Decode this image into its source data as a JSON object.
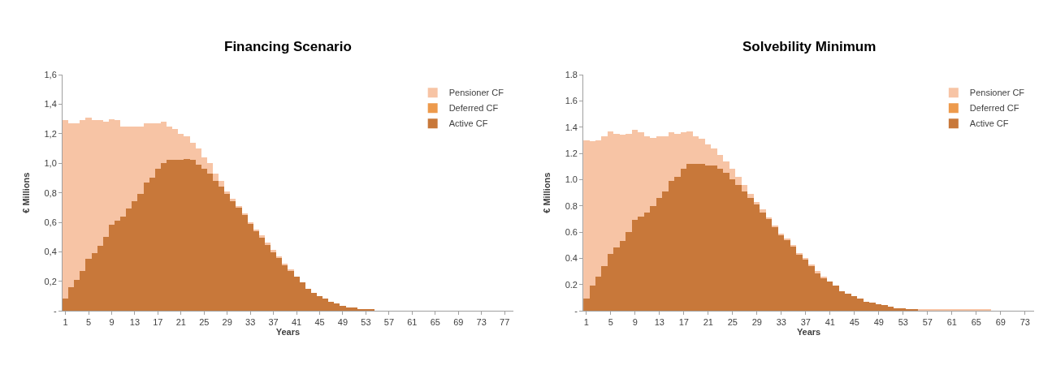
{
  "chart_data": [
    {
      "type": "bar",
      "title": "Financing Scenario",
      "xlabel": "Years",
      "ylabel": "€ Millions",
      "stacked": true,
      "grid": false,
      "legend": "top right",
      "categories": [
        "1",
        null,
        null,
        null,
        "5",
        null,
        null,
        null,
        "9",
        null,
        null,
        null,
        "13",
        null,
        null,
        null,
        "17",
        null,
        null,
        null,
        "21",
        null,
        null,
        null,
        "25",
        null,
        null,
        null,
        "29",
        null,
        null,
        null,
        "33",
        null,
        null,
        null,
        "37",
        null,
        null,
        null,
        "41",
        null,
        null,
        null,
        "45",
        null,
        null,
        null,
        "49",
        null,
        null,
        null,
        "53",
        null,
        null,
        null,
        "57",
        null,
        null,
        null,
        "61",
        null,
        null,
        null,
        "65",
        null,
        null,
        null,
        "69",
        null,
        null,
        null,
        "73",
        null,
        null,
        null,
        "77",
        null
      ],
      "ylim": [
        0,
        1.6
      ],
      "yticks": [
        {
          "value": 0,
          "label": "-"
        },
        {
          "value": 0.2,
          "label": "0,2"
        },
        {
          "value": 0.4,
          "label": "0,4"
        },
        {
          "value": 0.6,
          "label": "0,6"
        },
        {
          "value": 0.8,
          "label": "0,8"
        },
        {
          "value": 1.0,
          "label": "1,0"
        },
        {
          "value": 1.2,
          "label": "1,2"
        },
        {
          "value": 1.4,
          "label": "1,4"
        },
        {
          "value": 1.6,
          "label": "1,6"
        }
      ],
      "series": [
        {
          "name": "Active CF",
          "color": "#c8783a",
          "values": [
            0.08,
            0.16,
            0.21,
            0.27,
            0.35,
            0.39,
            0.44,
            0.5,
            0.58,
            0.61,
            0.64,
            0.69,
            0.74,
            0.79,
            0.87,
            0.9,
            0.96,
            1.0,
            1.02,
            1.02,
            1.02,
            1.03,
            1.02,
            0.99,
            0.96,
            0.93,
            0.88,
            0.84,
            0.79,
            0.74,
            0.7,
            0.65,
            0.59,
            0.54,
            0.5,
            0.45,
            0.4,
            0.36,
            0.31,
            0.27,
            0.23,
            0.19,
            0.15,
            0.12,
            0.1,
            0.08,
            0.06,
            0.05,
            0.03,
            0.02,
            0.02,
            0.01,
            0.01,
            0.01,
            0,
            0,
            0,
            0,
            0,
            0,
            0,
            0,
            0,
            0,
            0,
            0,
            0,
            0,
            0,
            0,
            0,
            0,
            0,
            0,
            0,
            0,
            0,
            0
          ]
        },
        {
          "name": "Deferred CF",
          "color": "#ed9a4c",
          "values": [
            0,
            0,
            0,
            0,
            0,
            0,
            0,
            0,
            0,
            0,
            0,
            0,
            0,
            0,
            0,
            0,
            0,
            0,
            0,
            0,
            0,
            0,
            0,
            0,
            0,
            0,
            0,
            0,
            0,
            0,
            0,
            0,
            0,
            0,
            0,
            0,
            0,
            0,
            0,
            0,
            0,
            0,
            0,
            0,
            0,
            0,
            0,
            0,
            0,
            0,
            0,
            0,
            0,
            0,
            0,
            0,
            0,
            0,
            0,
            0,
            0,
            0,
            0,
            0,
            0,
            0,
            0,
            0,
            0,
            0,
            0,
            0,
            0,
            0,
            0,
            0,
            0,
            0
          ]
        },
        {
          "name": "Pensioner CF",
          "color": "#f7c4a5",
          "values": [
            1.21,
            1.11,
            1.06,
            1.02,
            0.96,
            0.9,
            0.85,
            0.78,
            0.72,
            0.68,
            0.61,
            0.56,
            0.51,
            0.46,
            0.4,
            0.37,
            0.31,
            0.28,
            0.23,
            0.21,
            0.18,
            0.15,
            0.12,
            0.11,
            0.08,
            0.07,
            0.05,
            0.04,
            0.02,
            0.02,
            0.01,
            0.01,
            0.01,
            0.01,
            0.01,
            0.01,
            0.01,
            0.01,
            0.01,
            0.01,
            0,
            0,
            0,
            0,
            0,
            0,
            0,
            0,
            0,
            0,
            0,
            0,
            0,
            0,
            0,
            0,
            0,
            0,
            0,
            0,
            0,
            0,
            0,
            0,
            0,
            0,
            0,
            0,
            0,
            0,
            0,
            0,
            0,
            0,
            0,
            0,
            0,
            0
          ]
        }
      ]
    },
    {
      "type": "bar",
      "title": "Solvebility Minimum",
      "xlabel": "Years",
      "ylabel": "€ Millions",
      "stacked": true,
      "grid": false,
      "legend": "top right",
      "categories": [
        "1",
        null,
        null,
        null,
        "5",
        null,
        null,
        null,
        "9",
        null,
        null,
        null,
        "13",
        null,
        null,
        null,
        "17",
        null,
        null,
        null,
        "21",
        null,
        null,
        null,
        "25",
        null,
        null,
        null,
        "29",
        null,
        null,
        null,
        "33",
        null,
        null,
        null,
        "37",
        null,
        null,
        null,
        "41",
        null,
        null,
        null,
        "45",
        null,
        null,
        null,
        "49",
        null,
        null,
        null,
        "53",
        null,
        null,
        null,
        "57",
        null,
        null,
        null,
        "61",
        null,
        null,
        null,
        "65",
        null,
        null,
        null,
        "69",
        null,
        null,
        null,
        "73",
        null
      ],
      "ylim": [
        0,
        1.8
      ],
      "yticks": [
        {
          "value": 0,
          "label": "-"
        },
        0.2,
        0.4,
        0.6,
        0.8,
        {
          "value": 1.0,
          "label": "1.0"
        },
        1.2,
        1.4,
        1.6,
        1.8
      ],
      "series": [
        {
          "name": "Active CF",
          "color": "#c8783a",
          "values": [
            0.09,
            0.19,
            0.26,
            0.34,
            0.43,
            0.48,
            0.53,
            0.6,
            0.69,
            0.72,
            0.75,
            0.8,
            0.86,
            0.91,
            0.99,
            1.02,
            1.08,
            1.12,
            1.12,
            1.12,
            1.11,
            1.11,
            1.08,
            1.05,
            1.0,
            0.96,
            0.91,
            0.86,
            0.81,
            0.75,
            0.7,
            0.64,
            0.58,
            0.54,
            0.49,
            0.43,
            0.39,
            0.34,
            0.29,
            0.25,
            0.22,
            0.19,
            0.15,
            0.13,
            0.11,
            0.09,
            0.07,
            0.06,
            0.05,
            0.04,
            0.03,
            0.02,
            0.02,
            0.01,
            0.01,
            0,
            0,
            0,
            0,
            0,
            0,
            0,
            0,
            0,
            0,
            0,
            0,
            0,
            0,
            0,
            0,
            0,
            0,
            0
          ]
        },
        {
          "name": "Deferred CF",
          "color": "#ed9a4c",
          "values": [
            0,
            0,
            0,
            0,
            0,
            0,
            0,
            0,
            0,
            0,
            0,
            0,
            0,
            0,
            0,
            0,
            0,
            0,
            0,
            0,
            0,
            0,
            0,
            0,
            0,
            0,
            0,
            0,
            0,
            0,
            0,
            0,
            0,
            0,
            0,
            0,
            0,
            0,
            0,
            0,
            0,
            0,
            0,
            0,
            0,
            0,
            0,
            0,
            0,
            0,
            0,
            0,
            0,
            0,
            0,
            0,
            0,
            0,
            0,
            0,
            0,
            0,
            0,
            0,
            0,
            0,
            0,
            0,
            0,
            0,
            0,
            0,
            0,
            0
          ]
        },
        {
          "name": "Pensioner CF",
          "color": "#f7c4a5",
          "values": [
            1.21,
            1.1,
            1.04,
            0.99,
            0.94,
            0.87,
            0.81,
            0.75,
            0.69,
            0.64,
            0.58,
            0.52,
            0.47,
            0.42,
            0.37,
            0.33,
            0.28,
            0.25,
            0.21,
            0.19,
            0.16,
            0.13,
            0.11,
            0.09,
            0.08,
            0.06,
            0.05,
            0.03,
            0.02,
            0.02,
            0.01,
            0.01,
            0.01,
            0.01,
            0.01,
            0.01,
            0.01,
            0.01,
            0.01,
            0.01,
            0,
            0,
            0,
            0,
            0,
            0,
            0,
            0,
            0,
            0,
            0,
            0,
            0,
            0,
            0,
            0.01,
            0.01,
            0.01,
            0.01,
            0.01,
            0.01,
            0.01,
            0.01,
            0.01,
            0.01,
            0.01,
            0.01,
            0,
            0,
            0,
            0,
            0,
            0,
            0
          ]
        }
      ]
    }
  ]
}
